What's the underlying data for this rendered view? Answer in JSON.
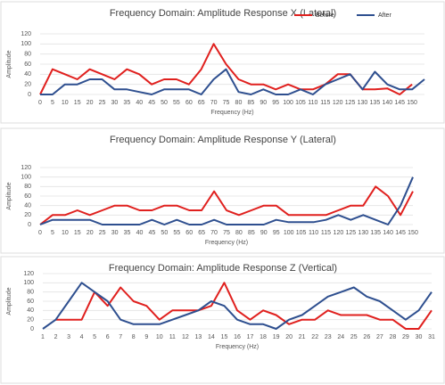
{
  "chart_data": [
    {
      "type": "line",
      "title": "Frequency Domain: Amplitude Response X (Lateral)",
      "x_label": "Frequency (Hz)",
      "y_label": "Amplitude",
      "categories": [
        0,
        5,
        10,
        15,
        20,
        25,
        30,
        35,
        40,
        45,
        50,
        55,
        60,
        65,
        70,
        75,
        80,
        85,
        90,
        95,
        100,
        105,
        110,
        115,
        120,
        125,
        130,
        135,
        140,
        145,
        150,
        null
      ],
      "series": [
        {
          "name": "Before",
          "color": "#e0201e",
          "values": [
            0,
            50,
            40,
            30,
            50,
            40,
            30,
            50,
            40,
            20,
            30,
            30,
            20,
            50,
            100,
            60,
            30,
            20,
            20,
            10,
            20,
            10,
            10,
            20,
            40,
            40,
            10,
            10,
            12,
            0,
            20,
            null
          ]
        },
        {
          "name": "After",
          "color": "#2e4f8f",
          "values": [
            0,
            0,
            20,
            20,
            30,
            30,
            10,
            10,
            5,
            0,
            10,
            10,
            10,
            0,
            30,
            50,
            5,
            0,
            10,
            0,
            0,
            10,
            0,
            20,
            30,
            40,
            10,
            45,
            20,
            10,
            10,
            30
          ]
        }
      ],
      "ylim": [
        0,
        120
      ],
      "yticks": [
        0,
        20,
        40,
        60,
        80,
        100,
        120
      ],
      "grid": true,
      "legend": "top-right"
    },
    {
      "type": "line",
      "title": "Frequency Domain: Amplitude Response Y (Lateral)",
      "x_label": "Frequency (Hz)",
      "y_label": "Amplitude",
      "categories": [
        0,
        5,
        10,
        15,
        20,
        25,
        30,
        35,
        40,
        45,
        50,
        55,
        60,
        65,
        70,
        75,
        80,
        85,
        90,
        95,
        100,
        105,
        110,
        115,
        120,
        125,
        130,
        135,
        140,
        145,
        150
      ],
      "series": [
        {
          "color": "#e0201e",
          "values": [
            0,
            20,
            20,
            30,
            20,
            30,
            40,
            40,
            30,
            30,
            40,
            40,
            30,
            30,
            70,
            30,
            20,
            30,
            40,
            40,
            20,
            20,
            20,
            20,
            30,
            40,
            40,
            80,
            60,
            20,
            70
          ]
        },
        {
          "color": "#2e4f8f",
          "values": [
            0,
            10,
            10,
            10,
            10,
            0,
            0,
            0,
            0,
            10,
            0,
            10,
            0,
            0,
            10,
            0,
            0,
            0,
            0,
            10,
            5,
            5,
            5,
            10,
            20,
            10,
            20,
            10,
            0,
            40,
            100
          ]
        }
      ],
      "ylim": [
        0,
        120
      ],
      "yticks": [
        0,
        20,
        40,
        60,
        80,
        100,
        120
      ],
      "grid": true
    },
    {
      "type": "line",
      "title": "Frequency Domain: Amplitude Response Z (Vertical)",
      "x_label": "Frequency (Hz)",
      "y_label": "Amplitude",
      "categories": [
        1,
        2,
        3,
        4,
        5,
        6,
        7,
        8,
        9,
        10,
        11,
        12,
        13,
        14,
        15,
        16,
        17,
        18,
        19,
        20,
        21,
        22,
        23,
        24,
        25,
        26,
        27,
        28,
        29,
        30,
        31
      ],
      "series": [
        {
          "color": "#e0201e",
          "values": [
            null,
            20,
            20,
            20,
            80,
            50,
            90,
            60,
            50,
            20,
            40,
            40,
            40,
            50,
            100,
            40,
            20,
            40,
            30,
            10,
            20,
            20,
            40,
            30,
            30,
            30,
            20,
            20,
            0,
            0,
            40
          ]
        },
        {
          "color": "#2e4f8f",
          "values": [
            0,
            20,
            60,
            100,
            80,
            60,
            20,
            10,
            10,
            10,
            20,
            30,
            40,
            60,
            50,
            20,
            10,
            10,
            0,
            20,
            30,
            50,
            70,
            80,
            90,
            70,
            60,
            40,
            20,
            40,
            80
          ]
        }
      ],
      "ylim": [
        0,
        120
      ],
      "yticks": [
        0,
        20,
        40,
        60,
        80,
        100,
        120
      ],
      "grid": true
    }
  ]
}
